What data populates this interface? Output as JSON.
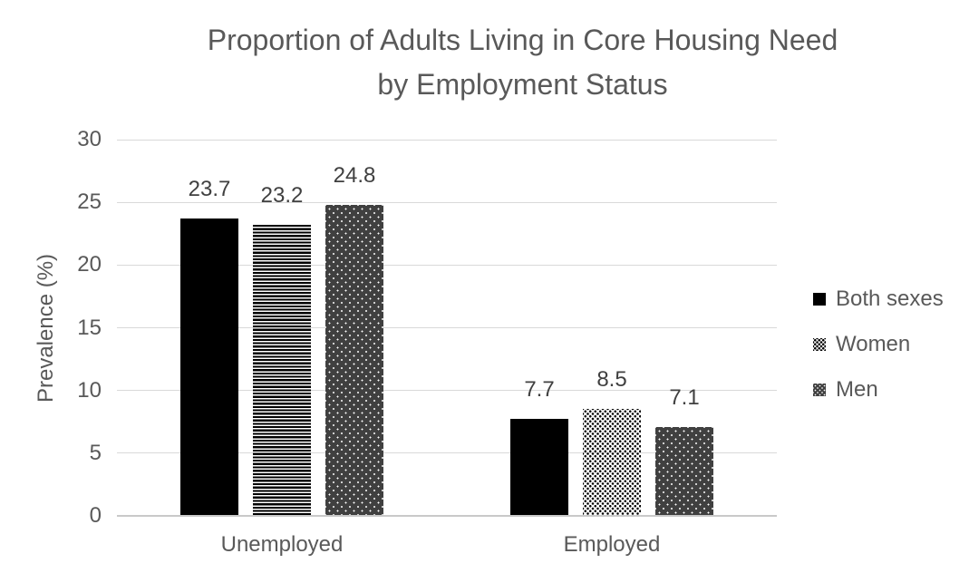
{
  "title_lines": [
    "Proportion of Adults Living in Core Housing Need",
    "by Employment Status"
  ],
  "chart_data": {
    "type": "bar",
    "title": "Proportion of Adults Living in Core Housing Need by Employment Status",
    "categories": [
      "Unemployed",
      "Employed"
    ],
    "series": [
      {
        "name": "Both sexes",
        "values": [
          23.7,
          7.7
        ],
        "labels": [
          "23.7",
          "7.7"
        ]
      },
      {
        "name": "Women",
        "values": [
          23.2,
          8.5
        ],
        "labels": [
          "23.2",
          "8.5"
        ]
      },
      {
        "name": "Men",
        "values": [
          24.8,
          7.1
        ],
        "labels": [
          "24.8",
          "7.1"
        ]
      }
    ],
    "xlabel": "",
    "ylabel": "Prevalence (%)",
    "ylim": [
      0,
      30
    ],
    "yticks": [
      0,
      5,
      10,
      15,
      20,
      25,
      30
    ],
    "grid": true,
    "legend_position": "right",
    "colors": {
      "both_sexes_fill": "#000000",
      "women_pattern": "#000000",
      "men_fill": "#404040",
      "axis_text": "#595959",
      "title_text": "#595959",
      "data_label_text": "#404040",
      "gridline": "#d9d9d9",
      "background": "#ffffff"
    }
  }
}
